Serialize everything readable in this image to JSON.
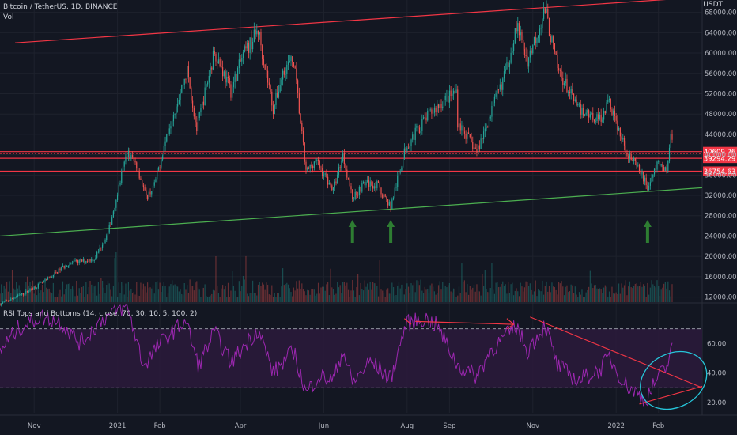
{
  "header": {
    "symbol_line": "Bitcoin / TetherUS, 1D, BINANCE",
    "volume_label": "Vol",
    "currency": "USDT"
  },
  "rsi_panel": {
    "title": "RSI Tops and Bottoms (14, close, 70, 30, 10, 5, 100, 2)"
  },
  "colors": {
    "background": "#131722",
    "up": "#26a69a",
    "down": "#ef5350",
    "resistance": "#f23645",
    "support": "#4caf50",
    "rsi_line": "#9c27b0",
    "rsi_band": "#2a1a3a",
    "ellipse": "#26c6da",
    "arrow": "#2e7d32"
  },
  "chart_data": [
    {
      "type": "candlestick",
      "title": "Bitcoin / TetherUS, 1D, BINANCE",
      "y_axis_ticks": [
        "68000.00",
        "64000.00",
        "60000.00",
        "56000.00",
        "52000.00",
        "48000.00",
        "44000.00",
        "40000.00",
        "36000.00",
        "32000.00",
        "28000.00",
        "24000.00",
        "20000.00",
        "16000.00",
        "12000.00"
      ],
      "y_axis_ticks_values": [
        68000,
        64000,
        60000,
        56000,
        52000,
        48000,
        44000,
        40000,
        36000,
        32000,
        28000,
        24000,
        20000,
        16000,
        12000
      ],
      "ylim": [
        11000,
        69500
      ],
      "x_axis_ticks": [
        "Nov",
        "2021",
        "Feb",
        "Apr",
        "Jun",
        "Aug",
        "Sep",
        "Nov",
        "2022",
        "Feb"
      ],
      "x_axis_dates": [
        "2020-11-01",
        "2021-01-01",
        "2021-02-01",
        "2021-04-01",
        "2021-06-01",
        "2021-08-01",
        "2021-09-01",
        "2021-11-01",
        "2022-01-01",
        "2022-02-01"
      ],
      "xlim": [
        "2020-10-07",
        "2022-03-05"
      ],
      "close_path": [
        [
          "2020-10-07",
          10600
        ],
        [
          "2020-10-25",
          12800
        ],
        [
          "2020-11-10",
          15300
        ],
        [
          "2020-11-25",
          18500
        ],
        [
          "2020-12-15",
          19500
        ],
        [
          "2020-12-25",
          24500
        ],
        [
          "2021-01-08",
          40500
        ],
        [
          "2021-01-15",
          38000
        ],
        [
          "2021-01-22",
          31500
        ],
        [
          "2021-01-28",
          34000
        ],
        [
          "2021-02-08",
          46000
        ],
        [
          "2021-02-21",
          56500
        ],
        [
          "2021-02-28",
          45000
        ],
        [
          "2021-03-13",
          60500
        ],
        [
          "2021-03-25",
          52500
        ],
        [
          "2021-04-02",
          59000
        ],
        [
          "2021-04-14",
          64500
        ],
        [
          "2021-04-25",
          49000
        ],
        [
          "2021-05-03",
          57000
        ],
        [
          "2021-05-10",
          58500
        ],
        [
          "2021-05-19",
          36500
        ],
        [
          "2021-05-26",
          39000
        ],
        [
          "2021-06-08",
          33000
        ],
        [
          "2021-06-15",
          40000
        ],
        [
          "2021-06-22",
          31500
        ],
        [
          "2021-07-01",
          34500
        ],
        [
          "2021-07-10",
          34000
        ],
        [
          "2021-07-20",
          29800
        ],
        [
          "2021-07-31",
          41500
        ],
        [
          "2021-08-14",
          47000
        ],
        [
          "2021-08-23",
          49500
        ],
        [
          "2021-09-06",
          52500
        ],
        [
          "2021-09-07",
          46500
        ],
        [
          "2021-09-21",
          40500
        ],
        [
          "2021-10-01",
          48000
        ],
        [
          "2021-10-13",
          57000
        ],
        [
          "2021-10-20",
          65500
        ],
        [
          "2021-10-28",
          58500
        ],
        [
          "2021-11-10",
          68500
        ],
        [
          "2021-11-19",
          57000
        ],
        [
          "2021-12-04",
          49000
        ],
        [
          "2021-12-20",
          47000
        ],
        [
          "2021-12-27",
          50500
        ],
        [
          "2022-01-07",
          41500
        ],
        [
          "2022-01-22",
          35000
        ],
        [
          "2022-01-24",
          33500
        ],
        [
          "2022-02-01",
          38500
        ],
        [
          "2022-02-07",
          36800
        ],
        [
          "2022-02-10",
          44000
        ],
        [
          "2022-02-11",
          42000
        ]
      ],
      "horizontal_levels": [
        {
          "label": "40609.26",
          "value": 40609.26,
          "color": "#f23645"
        },
        {
          "label": "39294.29",
          "value": 39294.29,
          "color": "#f23645"
        },
        {
          "label": "36754.63",
          "value": 36754.63,
          "color": "#f23645"
        }
      ],
      "trendlines": [
        {
          "name": "resistance",
          "from": [
            "2020-10-18",
            62000
          ],
          "to": [
            "2022-03-05",
            71000
          ]
        },
        {
          "name": "support",
          "from": [
            "2020-10-07",
            24000
          ],
          "to": [
            "2022-03-05",
            33500
          ]
        }
      ],
      "arrows": [
        "2021-06-22",
        "2021-07-20",
        "2022-01-24"
      ],
      "volume_series": "unlabeled histogram, per-day bars"
    },
    {
      "type": "line",
      "title": "RSI Tops and Bottoms (14, close, 70, 30, 10, 5, 100, 2)",
      "y_axis_ticks": [
        "60.00",
        "40.00",
        "20.00"
      ],
      "y_axis_ticks_values": [
        60,
        40,
        20
      ],
      "ylim": [
        13,
        87
      ],
      "levels": [
        70,
        30
      ],
      "rsi_path": [
        [
          "2020-10-07",
          55
        ],
        [
          "2020-10-20",
          70
        ],
        [
          "2020-11-05",
          78
        ],
        [
          "2020-11-20",
          75
        ],
        [
          "2020-12-05",
          60
        ],
        [
          "2020-12-20",
          76
        ],
        [
          "2021-01-08",
          86
        ],
        [
          "2021-01-20",
          45
        ],
        [
          "2021-02-01",
          60
        ],
        [
          "2021-02-20",
          76
        ],
        [
          "2021-03-01",
          45
        ],
        [
          "2021-03-13",
          68
        ],
        [
          "2021-03-25",
          47
        ],
        [
          "2021-04-14",
          70
        ],
        [
          "2021-04-25",
          40
        ],
        [
          "2021-05-10",
          55
        ],
        [
          "2021-05-19",
          26
        ],
        [
          "2021-05-28",
          38
        ],
        [
          "2021-06-08",
          35
        ],
        [
          "2021-06-15",
          56
        ],
        [
          "2021-06-22",
          33
        ],
        [
          "2021-07-05",
          48
        ],
        [
          "2021-07-20",
          36
        ],
        [
          "2021-07-31",
          73
        ],
        [
          "2021-08-14",
          77
        ],
        [
          "2021-08-23",
          72
        ],
        [
          "2021-09-07",
          45
        ],
        [
          "2021-09-21",
          38
        ],
        [
          "2021-10-01",
          55
        ],
        [
          "2021-10-20",
          72
        ],
        [
          "2021-10-28",
          55
        ],
        [
          "2021-11-10",
          73
        ],
        [
          "2021-11-19",
          45
        ],
        [
          "2021-12-04",
          35
        ],
        [
          "2021-12-20",
          42
        ],
        [
          "2021-12-27",
          51
        ],
        [
          "2022-01-07",
          33
        ],
        [
          "2022-01-22",
          22
        ],
        [
          "2022-01-24",
          24
        ],
        [
          "2022-02-01",
          38
        ],
        [
          "2022-02-07",
          43
        ],
        [
          "2022-02-10",
          58
        ]
      ],
      "annotations": [
        "double top arrows Aug–Oct",
        "descending trendline from Oct to Feb",
        "rising bottom trendline Jan–Feb",
        "ellipse around Jan–Feb divergence"
      ]
    }
  ]
}
